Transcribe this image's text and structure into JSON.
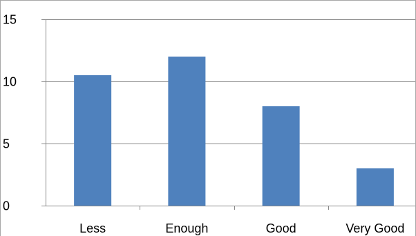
{
  "chart_data": {
    "type": "bar",
    "categories": [
      "Less",
      "Enough",
      "Good",
      "Very Good"
    ],
    "values": [
      10.5,
      12,
      8,
      3
    ],
    "title": "",
    "xlabel": "",
    "ylabel": "",
    "ylim": [
      0,
      15
    ],
    "yticks": [
      0,
      5,
      10,
      15
    ],
    "grid": true,
    "legend": "none",
    "colors": {
      "bar": "#4f81bd",
      "grid": "#868686",
      "axis": "#868686"
    }
  }
}
